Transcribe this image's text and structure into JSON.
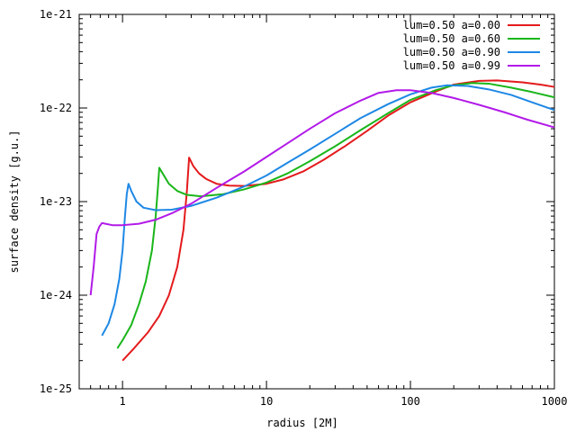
{
  "chart_data": {
    "type": "line",
    "title": "",
    "xlabel": "radius [2M]",
    "ylabel": "surface density [g.u.]",
    "x_scale": "log",
    "y_scale": "log",
    "xlim": [
      0.5,
      1000
    ],
    "ylim": [
      1e-25,
      1e-21
    ],
    "grid": false,
    "legend_position": "top-right",
    "x_ticks": [
      {
        "value": 1,
        "label": "1"
      },
      {
        "value": 10,
        "label": "10"
      },
      {
        "value": 100,
        "label": "100"
      },
      {
        "value": 1000,
        "label": "1000"
      }
    ],
    "y_ticks": [
      {
        "value": 1e-25,
        "label": "1e-25"
      },
      {
        "value": 1e-24,
        "label": "1e-24"
      },
      {
        "value": 1e-23,
        "label": "1e-23"
      },
      {
        "value": 1e-22,
        "label": "1e-22"
      },
      {
        "value": 1e-21,
        "label": "1e-21"
      }
    ],
    "series": [
      {
        "name": "lum=0.50 a=0.00",
        "color": "#e41a1c",
        "points": [
          [
            1.0,
            2e-25
          ],
          [
            1.2,
            2.7e-25
          ],
          [
            1.5,
            4e-25
          ],
          [
            1.8,
            6e-25
          ],
          [
            2.1,
            1e-24
          ],
          [
            2.4,
            2e-24
          ],
          [
            2.65,
            5e-24
          ],
          [
            2.8,
            1.3e-23
          ],
          [
            2.9,
            2.95e-23
          ],
          [
            3.1,
            2.4e-23
          ],
          [
            3.4,
            2e-23
          ],
          [
            3.8,
            1.75e-23
          ],
          [
            4.5,
            1.55e-23
          ],
          [
            5.5,
            1.48e-23
          ],
          [
            7.0,
            1.47e-23
          ],
          [
            10,
            1.55e-23
          ],
          [
            13,
            1.72e-23
          ],
          [
            18,
            2.1e-23
          ],
          [
            25,
            2.8e-23
          ],
          [
            35,
            3.9e-23
          ],
          [
            50,
            5.7e-23
          ],
          [
            70,
            8.3e-23
          ],
          [
            100,
            1.15e-22
          ],
          [
            150,
            1.5e-22
          ],
          [
            200,
            1.78e-22
          ],
          [
            300,
            1.95e-22
          ],
          [
            400,
            1.97e-22
          ],
          [
            600,
            1.88e-22
          ],
          [
            800,
            1.78e-22
          ],
          [
            1000,
            1.68e-22
          ]
        ]
      },
      {
        "name": "lum=0.50 a=0.60",
        "color": "#1ab61a",
        "points": [
          [
            0.92,
            2.7e-25
          ],
          [
            1.0,
            3.3e-25
          ],
          [
            1.15,
            4.8e-25
          ],
          [
            1.3,
            8e-25
          ],
          [
            1.45,
            1.4e-24
          ],
          [
            1.6,
            3e-24
          ],
          [
            1.7,
            7e-24
          ],
          [
            1.76,
            1.4e-23
          ],
          [
            1.8,
            2.3e-23
          ],
          [
            1.9,
            2e-23
          ],
          [
            2.1,
            1.55e-23
          ],
          [
            2.4,
            1.3e-23
          ],
          [
            2.8,
            1.18e-23
          ],
          [
            3.5,
            1.14e-23
          ],
          [
            5.0,
            1.2e-23
          ],
          [
            7.0,
            1.35e-23
          ],
          [
            10,
            1.6e-23
          ],
          [
            14,
            2e-23
          ],
          [
            20,
            2.7e-23
          ],
          [
            30,
            3.9e-23
          ],
          [
            45,
            5.8e-23
          ],
          [
            70,
            8.8e-23
          ],
          [
            100,
            1.22e-22
          ],
          [
            150,
            1.55e-22
          ],
          [
            200,
            1.75e-22
          ],
          [
            270,
            1.85e-22
          ],
          [
            350,
            1.82e-22
          ],
          [
            500,
            1.65e-22
          ],
          [
            700,
            1.48e-22
          ],
          [
            1000,
            1.3e-22
          ]
        ]
      },
      {
        "name": "lum=0.50 a=0.90",
        "color": "#1e88e5",
        "points": [
          [
            0.72,
            3.7e-25
          ],
          [
            0.8,
            5e-25
          ],
          [
            0.88,
            8e-25
          ],
          [
            0.95,
            1.5e-24
          ],
          [
            1.0,
            3e-24
          ],
          [
            1.04,
            7e-24
          ],
          [
            1.07,
            1.2e-23
          ],
          [
            1.1,
            1.55e-23
          ],
          [
            1.15,
            1.3e-23
          ],
          [
            1.25,
            1e-23
          ],
          [
            1.4,
            8.6e-24
          ],
          [
            1.7,
            8.1e-24
          ],
          [
            2.2,
            8.2e-24
          ],
          [
            3.0,
            9e-24
          ],
          [
            4.5,
            1.1e-23
          ],
          [
            7.0,
            1.45e-23
          ],
          [
            10,
            1.9e-23
          ],
          [
            14,
            2.6e-23
          ],
          [
            20,
            3.6e-23
          ],
          [
            30,
            5.3e-23
          ],
          [
            45,
            7.8e-23
          ],
          [
            70,
            1.1e-22
          ],
          [
            100,
            1.4e-22
          ],
          [
            140,
            1.65e-22
          ],
          [
            180,
            1.75e-22
          ],
          [
            250,
            1.72e-22
          ],
          [
            350,
            1.58e-22
          ],
          [
            500,
            1.38e-22
          ],
          [
            700,
            1.15e-22
          ],
          [
            1000,
            9.5e-23
          ]
        ]
      },
      {
        "name": "lum=0.50 a=0.99",
        "color": "#b21ae8",
        "points": [
          [
            0.6,
            1e-24
          ],
          [
            0.63,
            2e-24
          ],
          [
            0.66,
            4.5e-24
          ],
          [
            0.69,
            5.4e-24
          ],
          [
            0.72,
            5.9e-24
          ],
          [
            0.76,
            5.8e-24
          ],
          [
            0.85,
            5.6e-24
          ],
          [
            1.0,
            5.6e-24
          ],
          [
            1.3,
            5.8e-24
          ],
          [
            1.7,
            6.4e-24
          ],
          [
            2.2,
            7.5e-24
          ],
          [
            3.0,
            9.5e-24
          ],
          [
            4.5,
            1.4e-23
          ],
          [
            7.0,
            2.1e-23
          ],
          [
            10,
            3e-23
          ],
          [
            14,
            4.2e-23
          ],
          [
            20,
            6e-23
          ],
          [
            30,
            8.8e-23
          ],
          [
            45,
            1.2e-22
          ],
          [
            60,
            1.45e-22
          ],
          [
            80,
            1.55e-22
          ],
          [
            100,
            1.55e-22
          ],
          [
            140,
            1.45e-22
          ],
          [
            200,
            1.28e-22
          ],
          [
            300,
            1.08e-22
          ],
          [
            450,
            9e-23
          ],
          [
            650,
            7.5e-23
          ],
          [
            1000,
            6.2e-23
          ]
        ]
      }
    ]
  }
}
